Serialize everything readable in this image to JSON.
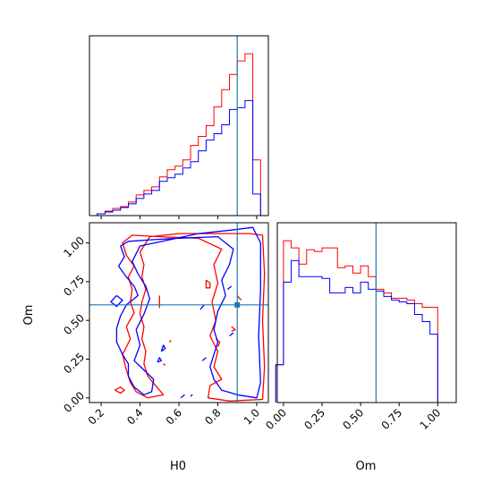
{
  "chart_data": {
    "type": "corner",
    "parameters": [
      "H0",
      "Om"
    ],
    "truth": {
      "H0": 0.9,
      "Om": 0.6
    },
    "colors": {
      "series_a": "#ff0000",
      "series_b": "#0000ff",
      "truth": "#1f77b4"
    },
    "panels": [
      {
        "id": "h0-histogram",
        "type": "step-histogram",
        "xlim": [
          0.14,
          1.06
        ],
        "ylim": [
          0,
          1.0
        ],
        "bin_edges": [
          0.18,
          0.22,
          0.26,
          0.3,
          0.34,
          0.38,
          0.42,
          0.46,
          0.5,
          0.54,
          0.58,
          0.62,
          0.66,
          0.7,
          0.74,
          0.78,
          0.82,
          0.86,
          0.9,
          0.94,
          0.98,
          1.02
        ],
        "series": [
          {
            "color": "#ff0000",
            "values": [
              0.01,
              0.025,
              0.04,
              0.05,
              0.075,
              0.115,
              0.14,
              0.16,
              0.215,
              0.255,
              0.275,
              0.31,
              0.39,
              0.44,
              0.5,
              0.605,
              0.7,
              0.785,
              0.86,
              0.9,
              0.31
            ]
          },
          {
            "color": "#0000ff",
            "values": [
              0.01,
              0.02,
              0.03,
              0.045,
              0.065,
              0.095,
              0.12,
              0.14,
              0.19,
              0.21,
              0.23,
              0.265,
              0.3,
              0.36,
              0.42,
              0.455,
              0.505,
              0.59,
              0.6,
              0.64,
              0.12
            ]
          }
        ]
      },
      {
        "id": "h0-om-contours",
        "type": "contour",
        "xlim": [
          0.14,
          1.06
        ],
        "ylim": [
          -0.03,
          1.13
        ],
        "series": [
          {
            "color": "#ff0000",
            "contours": [
              [
                [
                  0.36,
                  1.05
                ],
                [
                  0.31,
                  1.0
                ],
                [
                  0.33,
                  0.92
                ],
                [
                  0.37,
                  0.85
                ],
                [
                  0.34,
                  0.78
                ],
                [
                  0.36,
                  0.7
                ],
                [
                  0.35,
                  0.62
                ],
                [
                  0.37,
                  0.55
                ],
                [
                  0.33,
                  0.46
                ],
                [
                  0.35,
                  0.38
                ],
                [
                  0.31,
                  0.28
                ],
                [
                  0.33,
                  0.18
                ],
                [
                  0.35,
                  0.1
                ],
                [
                  0.38,
                  0.04
                ],
                [
                  0.44,
                  0.0
                ],
                [
                  0.52,
                  0.02
                ],
                [
                  0.48,
                  0.08
                ],
                [
                  0.44,
                  0.14
                ],
                [
                  0.42,
                  0.22
                ],
                [
                  0.43,
                  0.3
                ],
                [
                  0.41,
                  0.38
                ],
                [
                  0.42,
                  0.46
                ],
                [
                  0.4,
                  0.54
                ],
                [
                  0.41,
                  0.62
                ],
                [
                  0.43,
                  0.7
                ],
                [
                  0.41,
                  0.78
                ],
                [
                  0.42,
                  0.86
                ],
                [
                  0.4,
                  0.94
                ],
                [
                  0.45,
                  1.04
                ],
                [
                  0.6,
                  1.06
                ],
                [
                  0.8,
                  1.06
                ],
                [
                  0.96,
                  1.06
                ],
                [
                  1.03,
                  1.05
                ],
                [
                  1.04,
                  0.8
                ],
                [
                  1.03,
                  0.5
                ],
                [
                  1.04,
                  0.2
                ],
                [
                  1.03,
                  -0.01
                ],
                [
                  0.86,
                  -0.02
                ],
                [
                  0.75,
                  0.0
                ],
                [
                  0.76,
                  0.08
                ],
                [
                  0.82,
                  0.12
                ],
                [
                  0.78,
                  0.2
                ],
                [
                  0.8,
                  0.3
                ],
                [
                  0.76,
                  0.4
                ],
                [
                  0.79,
                  0.5
                ],
                [
                  0.77,
                  0.62
                ],
                [
                  0.8,
                  0.74
                ],
                [
                  0.78,
                  0.86
                ],
                [
                  0.82,
                  0.96
                ],
                [
                  0.7,
                  1.03
                ],
                [
                  0.5,
                  1.04
                ],
                [
                  0.36,
                  1.05
                ]
              ],
              [
                [
                  0.27,
                  0.05
                ],
                [
                  0.3,
                  0.03
                ],
                [
                  0.32,
                  0.05
                ],
                [
                  0.3,
                  0.07
                ],
                [
                  0.27,
                  0.05
                ]
              ],
              [
                [
                  0.5,
                  0.66
                ],
                [
                  0.5,
                  0.58
                ]
              ],
              [
                [
                  0.74,
                  0.76
                ],
                [
                  0.76,
                  0.74
                ],
                [
                  0.76,
                  0.71
                ],
                [
                  0.74,
                  0.71
                ],
                [
                  0.74,
                  0.76
                ]
              ],
              [
                [
                  0.79,
                  0.38
                ],
                [
                  0.81,
                  0.36
                ],
                [
                  0.8,
                  0.33
                ]
              ],
              [
                [
                  0.87,
                  0.46
                ],
                [
                  0.89,
                  0.44
                ],
                [
                  0.87,
                  0.43
                ]
              ],
              [
                [
                  0.9,
                  0.66
                ],
                [
                  0.92,
                  0.63
                ]
              ],
              [
                [
                  0.52,
                  0.22
                ],
                [
                  0.53,
                  0.21
                ]
              ],
              [
                [
                  0.55,
                  0.36
                ],
                [
                  0.56,
                  0.37
                ]
              ]
            ]
          },
          {
            "color": "#0000ff",
            "contours": [
              [
                [
                  0.34,
                  1.01
                ],
                [
                  0.3,
                  0.98
                ],
                [
                  0.32,
                  0.91
                ],
                [
                  0.29,
                  0.85
                ],
                [
                  0.33,
                  0.78
                ],
                [
                  0.37,
                  0.72
                ],
                [
                  0.39,
                  0.66
                ],
                [
                  0.33,
                  0.6
                ],
                [
                  0.3,
                  0.53
                ],
                [
                  0.28,
                  0.45
                ],
                [
                  0.28,
                  0.36
                ],
                [
                  0.31,
                  0.28
                ],
                [
                  0.34,
                  0.22
                ],
                [
                  0.34,
                  0.14
                ],
                [
                  0.37,
                  0.07
                ],
                [
                  0.42,
                  0.02
                ],
                [
                  0.46,
                  0.04
                ],
                [
                  0.47,
                  0.12
                ],
                [
                  0.42,
                  0.18
                ],
                [
                  0.37,
                  0.24
                ],
                [
                  0.4,
                  0.34
                ],
                [
                  0.38,
                  0.44
                ],
                [
                  0.42,
                  0.54
                ],
                [
                  0.45,
                  0.64
                ],
                [
                  0.43,
                  0.72
                ],
                [
                  0.39,
                  0.8
                ],
                [
                  0.36,
                  0.88
                ],
                [
                  0.4,
                  0.98
                ],
                [
                  0.55,
                  1.02
                ],
                [
                  0.7,
                  1.06
                ],
                [
                  0.85,
                  1.08
                ],
                [
                  0.98,
                  1.1
                ],
                [
                  1.02,
                  1.0
                ],
                [
                  1.02,
                  0.7
                ],
                [
                  1.01,
                  0.4
                ],
                [
                  1.02,
                  0.1
                ],
                [
                  1.0,
                  0.0
                ],
                [
                  0.9,
                  0.02
                ],
                [
                  0.82,
                  0.05
                ],
                [
                  0.78,
                  0.12
                ],
                [
                  0.76,
                  0.2
                ],
                [
                  0.78,
                  0.28
                ],
                [
                  0.8,
                  0.36
                ],
                [
                  0.78,
                  0.44
                ],
                [
                  0.8,
                  0.56
                ],
                [
                  0.84,
                  0.66
                ],
                [
                  0.82,
                  0.76
                ],
                [
                  0.86,
                  0.86
                ],
                [
                  0.88,
                  0.96
                ],
                [
                  0.8,
                  1.04
                ],
                [
                  0.6,
                  1.03
                ],
                [
                  0.45,
                  1.02
                ],
                [
                  0.34,
                  1.01
                ]
              ],
              [
                [
                  0.28,
                  0.66
                ],
                [
                  0.31,
                  0.63
                ],
                [
                  0.28,
                  0.59
                ],
                [
                  0.25,
                  0.62
                ],
                [
                  0.28,
                  0.66
                ]
              ],
              [
                [
                  0.49,
                  0.23
                ],
                [
                  0.51,
                  0.24
                ],
                [
                  0.5,
                  0.26
                ],
                [
                  0.49,
                  0.23
                ]
              ],
              [
                [
                  0.51,
                  0.3
                ],
                [
                  0.53,
                  0.32
                ],
                [
                  0.52,
                  0.34
                ],
                [
                  0.51,
                  0.3
                ]
              ],
              [
                [
                  0.61,
                  0.0
                ],
                [
                  0.63,
                  0.02
                ]
              ],
              [
                [
                  0.72,
                  0.24
                ],
                [
                  0.74,
                  0.26
                ]
              ],
              [
                [
                  0.71,
                  0.57
                ],
                [
                  0.73,
                  0.6
                ]
              ],
              [
                [
                  0.86,
                  0.4
                ],
                [
                  0.88,
                  0.42
                ]
              ],
              [
                [
                  0.85,
                  0.7
                ],
                [
                  0.87,
                  0.72
                ]
              ],
              [
                [
                  0.66,
                  0.01
                ],
                [
                  0.67,
                  0.02
                ]
              ]
            ]
          }
        ]
      },
      {
        "id": "om-histogram",
        "type": "step-histogram",
        "xlim": [
          -0.04,
          1.12
        ],
        "ylim": [
          0,
          1.0
        ],
        "bin_edges": [
          -0.05,
          0.0,
          0.05,
          0.1,
          0.15,
          0.2,
          0.25,
          0.3,
          0.35,
          0.4,
          0.45,
          0.5,
          0.55,
          0.6,
          0.65,
          0.7,
          0.75,
          0.8,
          0.85,
          0.9,
          0.95,
          1.0,
          1.05
        ],
        "series": [
          {
            "color": "#ff0000",
            "values": [
              0.21,
              0.9,
              0.86,
              0.77,
              0.85,
              0.84,
              0.86,
              0.86,
              0.75,
              0.76,
              0.72,
              0.76,
              0.7,
              0.63,
              0.61,
              0.58,
              0.58,
              0.57,
              0.55,
              0.53,
              0.53,
              0.0
            ]
          },
          {
            "color": "#0000ff",
            "values": [
              0.21,
              0.67,
              0.79,
              0.7,
              0.7,
              0.7,
              0.69,
              0.61,
              0.61,
              0.64,
              0.61,
              0.67,
              0.63,
              0.62,
              0.59,
              0.57,
              0.56,
              0.55,
              0.49,
              0.45,
              0.38,
              0.0
            ]
          }
        ]
      }
    ],
    "axes": {
      "h0_ticks": [
        0.2,
        0.4,
        0.6,
        0.8,
        1.0
      ],
      "h0_tick_labels": [
        "0.2",
        "0.4",
        "0.6",
        "0.8",
        "1.0"
      ],
      "om_ticks": [
        0.0,
        0.25,
        0.5,
        0.75,
        1.0
      ],
      "om_tick_labels": [
        "0.00",
        "0.25",
        "0.50",
        "0.75",
        "1.00"
      ],
      "xlabel_left": "H0",
      "xlabel_right": "Om",
      "ylabel_left": "Om"
    }
  }
}
